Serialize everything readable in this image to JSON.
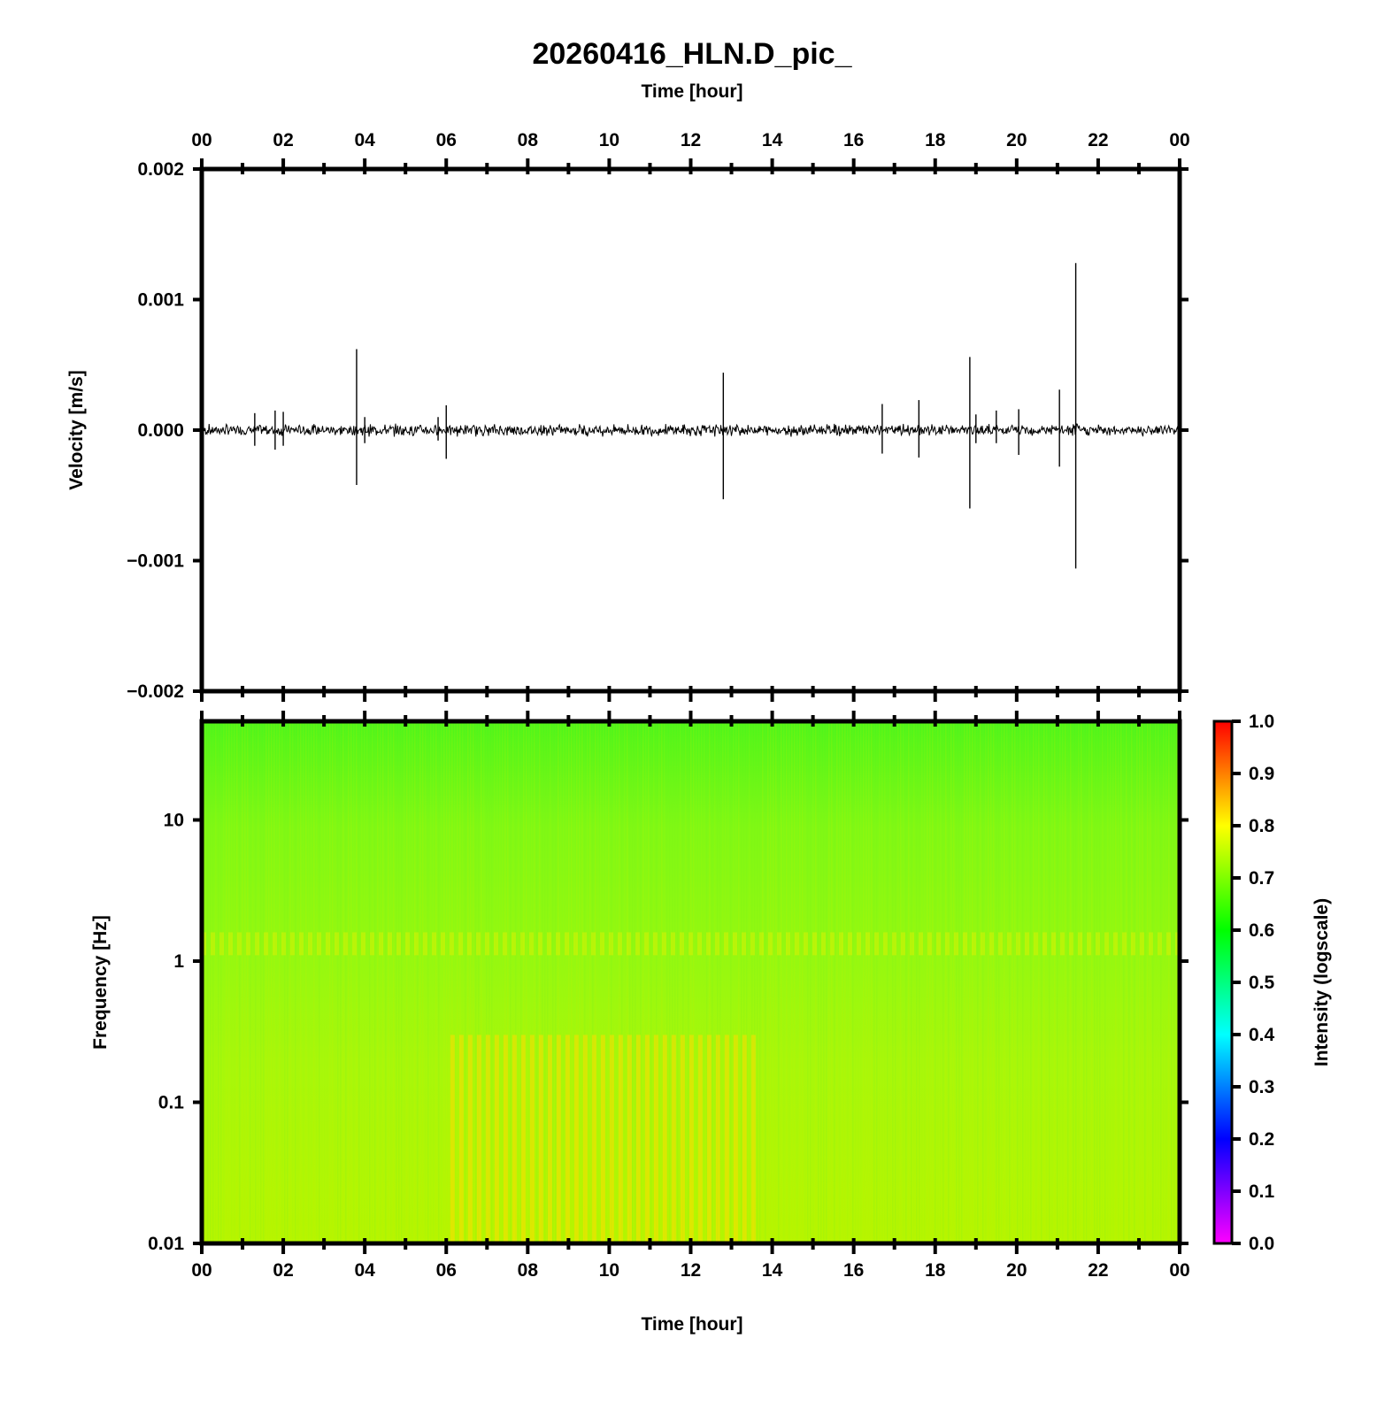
{
  "title": "20260416_HLN.D_pic_",
  "colors": {
    "trace": "#000000",
    "spectrogram_base": "#9bff1a",
    "colormap": [
      "#ff00ff",
      "#0000ff",
      "#00ffff",
      "#00ff00",
      "#ffff00",
      "#ff0000"
    ]
  },
  "chart_data": [
    {
      "type": "line",
      "name": "velocity-trace",
      "xlabel": "Time [hour]",
      "ylabel": "Velocity [m/s]",
      "xlim": [
        0,
        24
      ],
      "ylim": [
        -0.002,
        0.002
      ],
      "x_ticks": [
        "00",
        "02",
        "04",
        "06",
        "08",
        "10",
        "12",
        "14",
        "16",
        "18",
        "20",
        "22",
        "00"
      ],
      "y_ticks": [
        "0.002",
        "0.001",
        "0.000",
        "−0.001",
        "−0.002"
      ],
      "y_tick_values": [
        0.002,
        0.001,
        0.0,
        -0.001,
        -0.002
      ],
      "grid": false,
      "noise_amplitude": 4e-05,
      "spikes": [
        {
          "t": 1.3,
          "max": 0.00013,
          "min": -0.00012
        },
        {
          "t": 1.8,
          "max": 0.00015,
          "min": -0.00015
        },
        {
          "t": 2.0,
          "max": 0.00014,
          "min": -0.00012
        },
        {
          "t": 3.8,
          "max": 0.00062,
          "min": -0.00042
        },
        {
          "t": 4.0,
          "max": 0.0001,
          "min": -0.0001
        },
        {
          "t": 5.8,
          "max": 0.0001,
          "min": -8e-05
        },
        {
          "t": 6.0,
          "max": 0.00019,
          "min": -0.00022
        },
        {
          "t": 12.8,
          "max": 0.00044,
          "min": -0.00053
        },
        {
          "t": 16.7,
          "max": 0.0002,
          "min": -0.00018
        },
        {
          "t": 17.6,
          "max": 0.00023,
          "min": -0.00021
        },
        {
          "t": 18.85,
          "max": 0.00056,
          "min": -0.0006
        },
        {
          "t": 19.0,
          "max": 0.00012,
          "min": -0.0001
        },
        {
          "t": 19.5,
          "max": 0.00015,
          "min": -0.0001
        },
        {
          "t": 20.05,
          "max": 0.00016,
          "min": -0.00019
        },
        {
          "t": 21.05,
          "max": 0.00031,
          "min": -0.00028
        },
        {
          "t": 21.45,
          "max": 0.00128,
          "min": -0.00106
        }
      ]
    },
    {
      "type": "heatmap",
      "name": "spectrogram",
      "xlabel": "Time [hour]",
      "ylabel": "Frequency [Hz]",
      "xlim": [
        0,
        24
      ],
      "ylim": [
        0.01,
        50
      ],
      "yscale": "log",
      "x_ticks": [
        "00",
        "02",
        "04",
        "06",
        "08",
        "10",
        "12",
        "14",
        "16",
        "18",
        "20",
        "22",
        "00"
      ],
      "y_ticks": [
        "10",
        "1",
        "0.1",
        "0.01"
      ],
      "y_tick_values": [
        10,
        1,
        0.1,
        0.01
      ],
      "grid": false,
      "description_bands": [
        {
          "fmin": 0.01,
          "fmax": 0.3,
          "tmin": 6.1,
          "tmax": 13.7,
          "intensity": 0.85
        },
        {
          "fmin": 1.1,
          "fmax": 1.6,
          "tmin": 0,
          "tmax": 24,
          "intensity": 0.78
        }
      ],
      "colorbar": {
        "label": "Intensity (logscale)",
        "range": [
          0.0,
          1.0
        ],
        "ticks": [
          "1.0",
          "0.9",
          "0.8",
          "0.7",
          "0.6",
          "0.5",
          "0.4",
          "0.3",
          "0.2",
          "0.1",
          "0.0"
        ],
        "tick_values": [
          1.0,
          0.9,
          0.8,
          0.7,
          0.6,
          0.5,
          0.4,
          0.3,
          0.2,
          0.1,
          0.0
        ]
      }
    }
  ]
}
